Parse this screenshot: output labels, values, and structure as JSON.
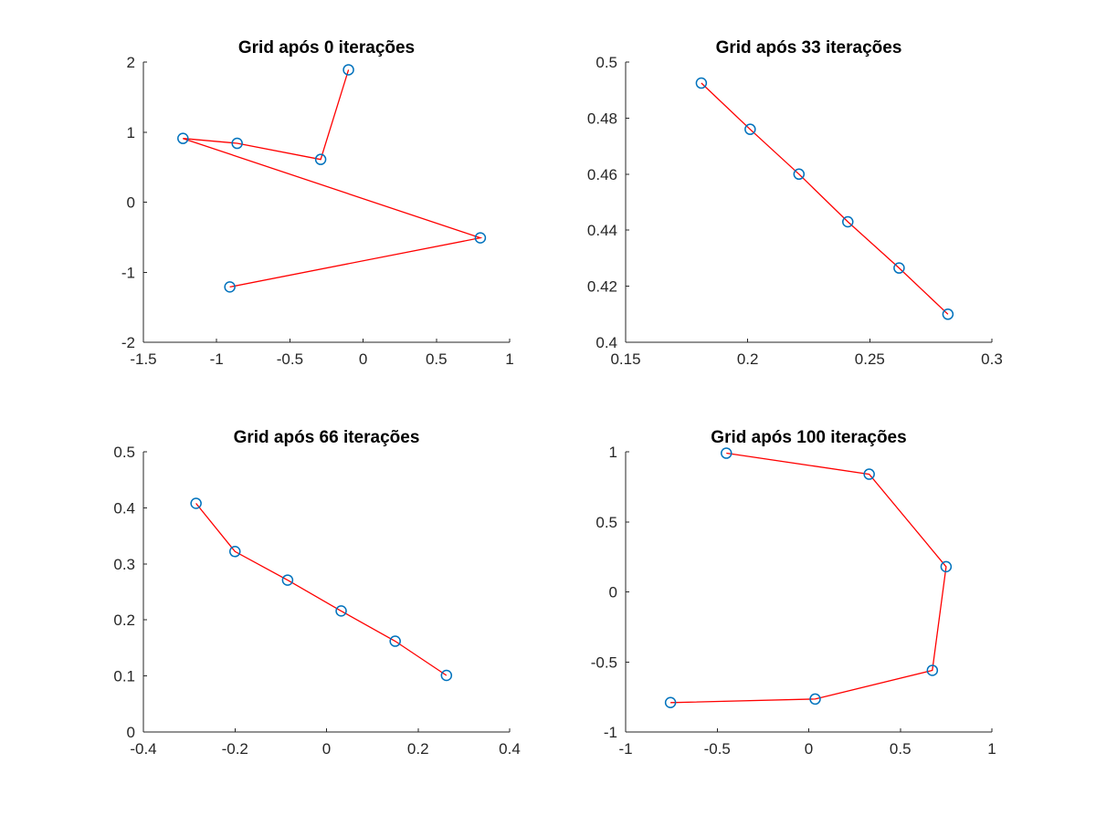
{
  "colors": {
    "line": "#ff0000",
    "marker": "#0072bd"
  },
  "chart_data": [
    {
      "type": "line",
      "title": "Grid após 0 iterações",
      "xlim": [
        -1.5,
        1
      ],
      "ylim": [
        -2,
        2
      ],
      "xticks": [
        -1.5,
        -1,
        -0.5,
        0,
        0.5,
        1
      ],
      "xtick_labels": [
        "-1.5",
        "-1",
        "-0.5",
        "0",
        "0.5",
        "1"
      ],
      "yticks": [
        -2,
        -1,
        0,
        1,
        2
      ],
      "ytick_labels": [
        "-2",
        "-1",
        "0",
        "1",
        "2"
      ],
      "grid": false,
      "points": [
        {
          "x": -0.1,
          "y": 1.89
        },
        {
          "x": -0.29,
          "y": 0.61
        },
        {
          "x": -0.86,
          "y": 0.84
        },
        {
          "x": -1.23,
          "y": 0.91
        },
        {
          "x": 0.8,
          "y": -0.51
        },
        {
          "x": -0.91,
          "y": -1.21
        }
      ]
    },
    {
      "type": "line",
      "title": "Grid após 33 iterações",
      "xlim": [
        0.15,
        0.3
      ],
      "ylim": [
        0.4,
        0.5
      ],
      "xticks": [
        0.15,
        0.2,
        0.25,
        0.3
      ],
      "xtick_labels": [
        "0.15",
        "0.2",
        "0.25",
        "0.3"
      ],
      "yticks": [
        0.4,
        0.42,
        0.44,
        0.46,
        0.48,
        0.5
      ],
      "ytick_labels": [
        "0.4",
        "0.42",
        "0.44",
        "0.46",
        "0.48",
        "0.5"
      ],
      "grid": false,
      "points": [
        {
          "x": 0.181,
          "y": 0.4925
        },
        {
          "x": 0.201,
          "y": 0.476
        },
        {
          "x": 0.221,
          "y": 0.46
        },
        {
          "x": 0.241,
          "y": 0.443
        },
        {
          "x": 0.262,
          "y": 0.4265
        },
        {
          "x": 0.282,
          "y": 0.41
        }
      ]
    },
    {
      "type": "line",
      "title": "Grid após 66 iterações",
      "xlim": [
        -0.4,
        0.4
      ],
      "ylim": [
        0,
        0.5
      ],
      "xticks": [
        -0.4,
        -0.2,
        0,
        0.2,
        0.4
      ],
      "xtick_labels": [
        "-0.4",
        "-0.2",
        "0",
        "0.2",
        "0.4"
      ],
      "yticks": [
        0,
        0.1,
        0.2,
        0.3,
        0.4,
        0.5
      ],
      "ytick_labels": [
        "0",
        "0.1",
        "0.2",
        "0.3",
        "0.4",
        "0.5"
      ],
      "grid": false,
      "points": [
        {
          "x": -0.285,
          "y": 0.408
        },
        {
          "x": -0.2,
          "y": 0.322
        },
        {
          "x": -0.085,
          "y": 0.271
        },
        {
          "x": 0.032,
          "y": 0.216
        },
        {
          "x": 0.15,
          "y": 0.162
        },
        {
          "x": 0.262,
          "y": 0.101
        }
      ]
    },
    {
      "type": "line",
      "title": "Grid após 100 iterações",
      "xlim": [
        -1,
        1
      ],
      "ylim": [
        -1,
        1
      ],
      "xticks": [
        -1,
        -0.5,
        0,
        0.5,
        1
      ],
      "xtick_labels": [
        "-1",
        "-0.5",
        "0",
        "0.5",
        "1"
      ],
      "yticks": [
        -1,
        -0.5,
        0,
        0.5,
        1
      ],
      "ytick_labels": [
        "-1",
        "-0.5",
        "0",
        "0.5",
        "1"
      ],
      "grid": false,
      "points": [
        {
          "x": -0.45,
          "y": 0.99
        },
        {
          "x": 0.33,
          "y": 0.84
        },
        {
          "x": 0.75,
          "y": 0.18
        },
        {
          "x": 0.675,
          "y": -0.56
        },
        {
          "x": 0.035,
          "y": -0.765
        },
        {
          "x": -0.755,
          "y": -0.79
        }
      ]
    }
  ]
}
